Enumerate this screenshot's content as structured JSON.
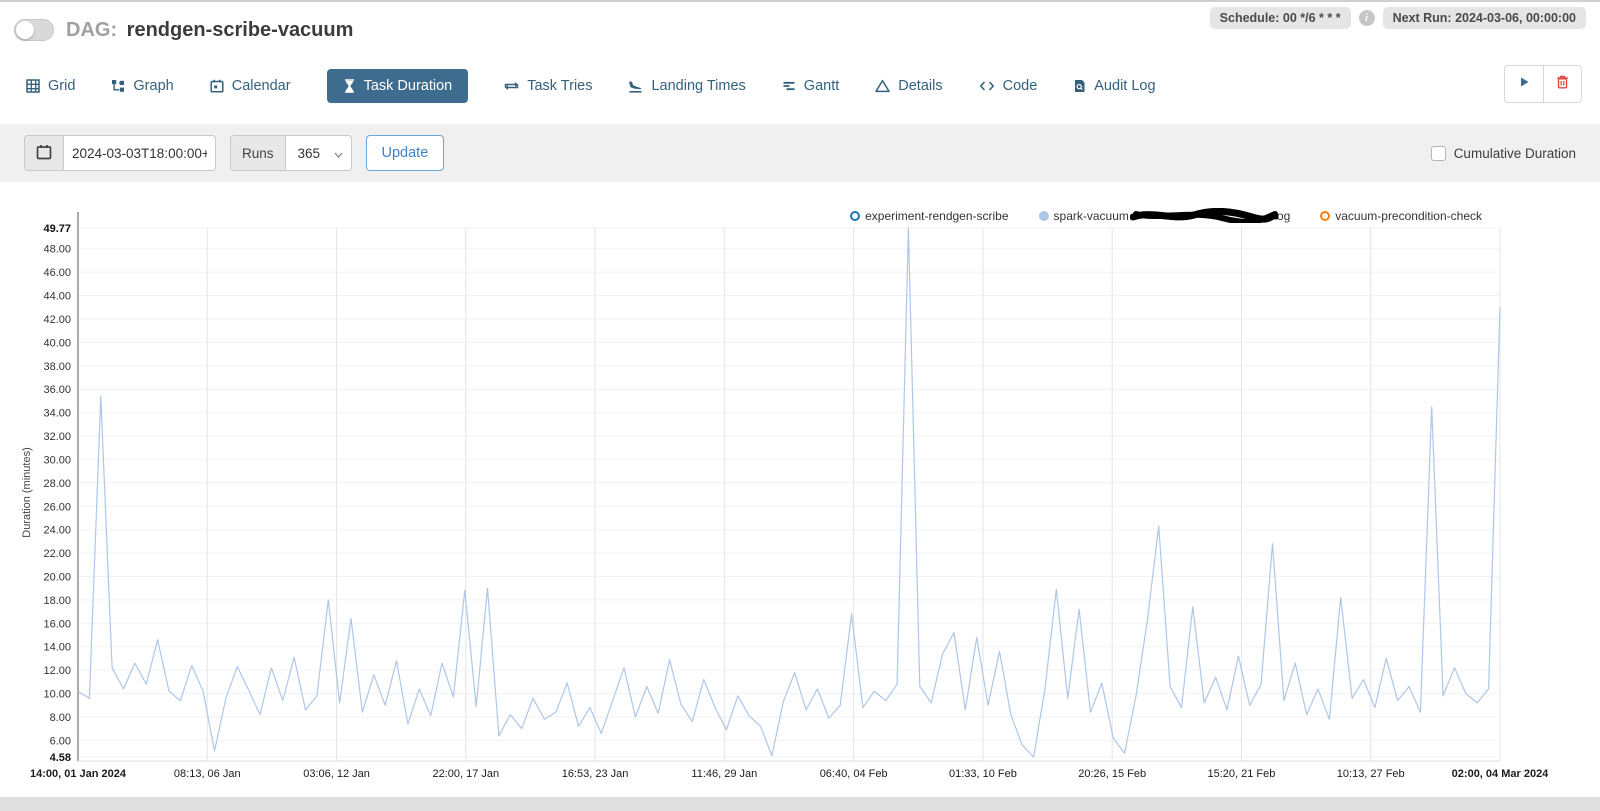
{
  "header": {
    "dag_prefix": "DAG:",
    "dag_title": "rendgen-scribe-vacuum",
    "schedule_badge": "Schedule: 00 */6 * * *",
    "next_run_badge": "Next Run: 2024-03-06, 00:00:00"
  },
  "tabs": [
    {
      "label": "Grid",
      "icon": "grid-icon",
      "active": false
    },
    {
      "label": "Graph",
      "icon": "graph-icon",
      "active": false
    },
    {
      "label": "Calendar",
      "icon": "calendar-icon",
      "active": false
    },
    {
      "label": "Task Duration",
      "icon": "hourglass-icon",
      "active": true
    },
    {
      "label": "Task Tries",
      "icon": "repeat-icon",
      "active": false
    },
    {
      "label": "Landing Times",
      "icon": "plane-landing-icon",
      "active": false
    },
    {
      "label": "Gantt",
      "icon": "gantt-bars-icon",
      "active": false
    },
    {
      "label": "Details",
      "icon": "triangle-icon",
      "active": false
    },
    {
      "label": "Code",
      "icon": "code-icon",
      "active": false
    },
    {
      "label": "Audit Log",
      "icon": "audit-log-icon",
      "active": false
    }
  ],
  "actions": {
    "run_icon": "play-icon",
    "delete_icon": "trash-icon"
  },
  "filter_bar": {
    "date_value": "2024-03-03T18:00:00+00:00",
    "runs_label": "Runs",
    "runs_value": "365",
    "update_label": "Update",
    "cumulative_label": "Cumulative Duration"
  },
  "legend": [
    {
      "label": "experiment-rendgen-scribe",
      "color": "#1f77b4",
      "filled": false
    },
    {
      "label_prefix": "spark-vacuum",
      "label_suffix": "og",
      "redacted": true,
      "color": "#aec7e8",
      "filled": true
    },
    {
      "label": "vacuum-precondition-check",
      "color": "#ff7f0e",
      "filled": false
    }
  ],
  "chart_data": {
    "type": "line",
    "title": "",
    "xlabel": "",
    "ylabel": "Duration (minutes)",
    "ylim": [
      4.58,
      49.77
    ],
    "grid": true,
    "legend_position": "top-right",
    "y_ticks": [
      49.77,
      48,
      46,
      44,
      42,
      40,
      38,
      36,
      34,
      32,
      30,
      28,
      26,
      24,
      22,
      20,
      18,
      16,
      14,
      12,
      10,
      8,
      6,
      4.58
    ],
    "y_tick_labels": [
      "49.77",
      "48.00",
      "46.00",
      "44.00",
      "42.00",
      "40.00",
      "38.00",
      "36.00",
      "34.00",
      "32.00",
      "30.00",
      "28.00",
      "26.00",
      "24.00",
      "22.00",
      "20.00",
      "18.00",
      "16.00",
      "14.00",
      "12.00",
      "10.00",
      "8.00",
      "6.00",
      "4.58"
    ],
    "x_tick_labels": [
      "14:00, 01 Jan 2024",
      "08:13, 06 Jan",
      "03:06, 12 Jan",
      "22:00, 17 Jan",
      "16:53, 23 Jan",
      "11:46, 29 Jan",
      "06:40, 04 Feb",
      "01:33, 10 Feb",
      "20:26, 15 Feb",
      "15:20, 21 Feb",
      "10:13, 27 Feb",
      "02:00, 04 Mar 2024"
    ],
    "series": [
      {
        "name": "spark-vacuum-[redacted]-og",
        "color": "#aec7e8",
        "values": [
          10.2,
          9.6,
          35.4,
          12.2,
          10.4,
          12.6,
          10.8,
          14.6,
          10.2,
          9.4,
          12.4,
          10.2,
          5.1,
          9.6,
          12.3,
          10.3,
          8.2,
          12.2,
          9.4,
          13.1,
          8.6,
          9.8,
          18.0,
          9.2,
          16.4,
          8.4,
          11.6,
          9.0,
          12.8,
          7.4,
          10.4,
          8.1,
          12.6,
          9.7,
          18.8,
          8.9,
          19.0,
          6.4,
          8.2,
          7.0,
          9.6,
          7.8,
          8.4,
          10.9,
          7.2,
          8.8,
          6.6,
          9.4,
          12.2,
          8.0,
          10.6,
          8.3,
          12.9,
          9.1,
          7.6,
          11.2,
          8.8,
          6.9,
          9.8,
          8.1,
          7.2,
          4.7,
          9.3,
          11.8,
          8.6,
          10.4,
          7.9,
          9.0,
          16.8,
          8.8,
          10.2,
          9.4,
          10.8,
          49.77,
          10.6,
          9.2,
          13.4,
          15.2,
          8.6,
          14.8,
          9.0,
          13.6,
          8.2,
          5.6,
          4.58,
          10.4,
          18.9,
          9.6,
          17.2,
          8.4,
          10.9,
          6.2,
          4.9,
          9.8,
          16.2,
          24.3,
          10.6,
          8.8,
          17.4,
          9.2,
          11.4,
          8.6,
          13.2,
          9.0,
          10.8,
          22.8,
          9.4,
          12.6,
          8.2,
          10.4,
          7.8,
          18.2,
          9.6,
          11.2,
          8.8,
          13.0,
          9.4,
          10.6,
          8.4,
          34.5,
          9.8,
          12.2,
          10.0,
          9.2,
          10.4,
          43.0
        ]
      }
    ]
  }
}
